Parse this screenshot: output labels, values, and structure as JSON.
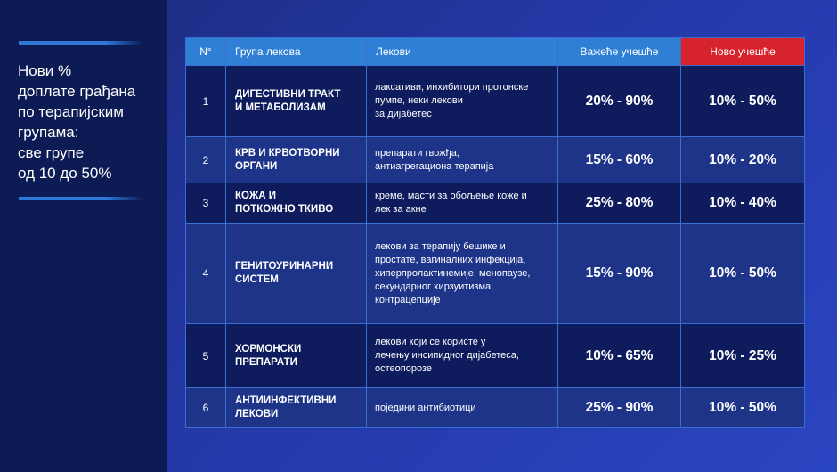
{
  "sidebar": {
    "headline_lines": [
      "Нови %",
      "доплате грађана",
      "по терапијским",
      "групама:",
      "све групе",
      "од 10 до 50%"
    ]
  },
  "table": {
    "headers": {
      "num": "N°",
      "group": "Група лекова",
      "drugs": "Лекови",
      "old": "Важеће учешће",
      "new": "Ново учешће"
    },
    "rows": [
      {
        "num": "1",
        "group_lines": [
          "ДИГЕСТИВНИ ТРАКТ",
          "И МЕТАБОЛИЗАМ"
        ],
        "drugs_lines": [
          "лаксативи, инхибитори протонске",
          "пумпе, неки лекови",
          "за дијабетес"
        ],
        "old": "20% - 90%",
        "new": "10% - 50%"
      },
      {
        "num": "2",
        "group_lines": [
          "КРВ И КРВОТВОРНИ",
          "ОРГАНИ"
        ],
        "drugs_lines": [
          "препарати гвожђа,",
          "антиагрегациона терапија"
        ],
        "old": "15% - 60%",
        "new": "10% - 20%"
      },
      {
        "num": "3",
        "group_lines": [
          "КОЖА И",
          "ПОТКОЖНО ТКИВО"
        ],
        "drugs_lines": [
          "креме, масти за обољење коже и",
          "лек за акне"
        ],
        "old": "25% - 80%",
        "new": "10% - 40%"
      },
      {
        "num": "4",
        "group_lines": [
          "ГЕНИТОУРИНАРНИ",
          "СИСТЕМ"
        ],
        "drugs_lines": [
          "лекови за терапију бешике и",
          "простате, вагиналних инфекција,",
          "хиперпролактинемије, менопаузе,",
          "секундарног хирзуитизма,",
          "контрацепције"
        ],
        "old": "15% - 90%",
        "new": "10% - 50%"
      },
      {
        "num": "5",
        "group_lines": [
          "ХОРМОНСКИ",
          "ПРЕПАРАТИ"
        ],
        "drugs_lines": [
          "лекови који се користе у",
          "лечењу инсипидног дијабетеса,",
          "остеопорозе"
        ],
        "old": "10% - 65%",
        "new": "10% - 25%"
      },
      {
        "num": "6",
        "group_lines": [
          "АНТИИНФЕКТИВНИ",
          "ЛЕКОВИ"
        ],
        "drugs_lines": [
          "поједини антибиотици"
        ],
        "old": "25% - 90%",
        "new": "10% - 50%"
      }
    ]
  },
  "colors": {
    "sidebar_bg": "#0d1b55",
    "header_bg": "#2f7fd6",
    "new_header_bg": "#d6232e",
    "old_value": "#4aa2ea",
    "row_dark": "#0e1c5e",
    "row_light": "#1d3489"
  }
}
